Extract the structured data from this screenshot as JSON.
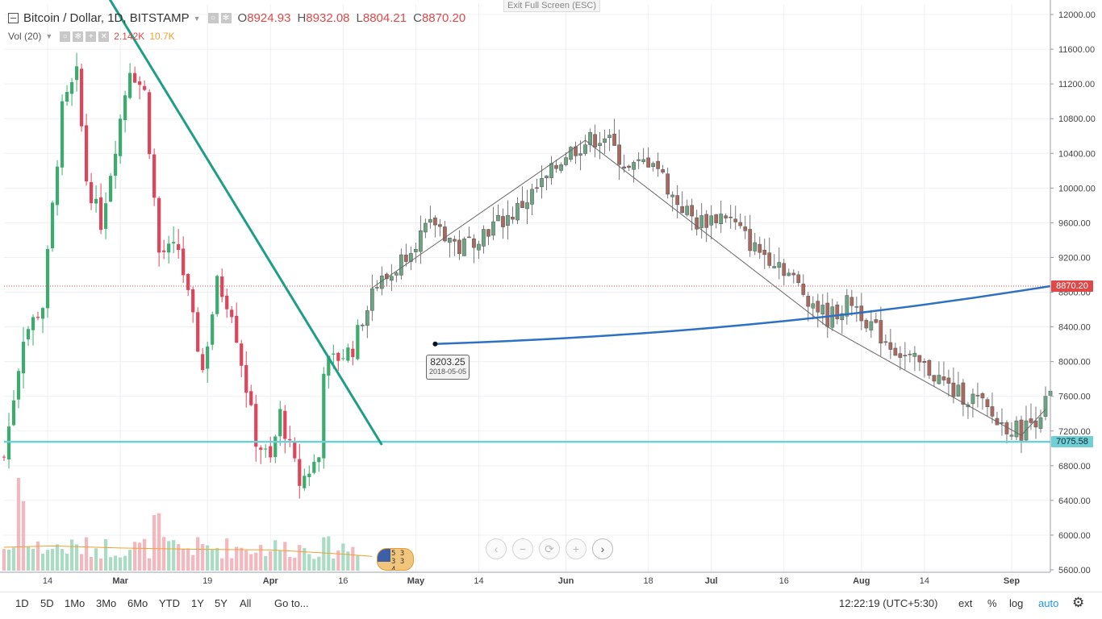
{
  "legend": {
    "symbol": "Bitcoin / Dollar, 1D, BITSTAMP",
    "open_label": "O",
    "open": "8924.93",
    "high_label": "H",
    "high": "8932.08",
    "low_label": "L",
    "low": "8804.21",
    "close_label": "C",
    "close": "8870.20",
    "volume_label": "Vol (20)",
    "volume": "2.142K",
    "volume_ma": "10.7K"
  },
  "exit_fullscreen": "Exit Full Screen (ESC)",
  "price_tags": {
    "last": "8870.20",
    "level": "7075.58"
  },
  "drag_label": {
    "value": "8203.25",
    "date": "2018-05-05"
  },
  "flag_badge_text": "5 3 3 3 4",
  "toolbar": {
    "ranges": [
      "1D",
      "5D",
      "1Mo",
      "3Mo",
      "6Mo",
      "YTD",
      "1Y",
      "5Y",
      "All"
    ],
    "goto": "Go to...",
    "time": "12:22:19 (UTC+5:30)",
    "ext": "ext",
    "percent": "%",
    "log": "log",
    "auto": "auto"
  },
  "nav_icons": [
    "chevron-left-icon",
    "zoom-out-icon",
    "reset-icon",
    "zoom-in-icon",
    "chevron-right-icon"
  ],
  "colors": {
    "up": "#6ba583",
    "down": "#d75442",
    "trendline": "#1e9e84",
    "curve": "#2e70c4",
    "support": "#6fd0d6",
    "last_price": "#e04848"
  },
  "chart_data": {
    "type": "candlestick",
    "y_ticks": [
      5600,
      6000,
      6400,
      6800,
      7200,
      7600,
      8000,
      8400,
      8800,
      9200,
      9600,
      10000,
      10400,
      10800,
      11200,
      11600,
      12000
    ],
    "y_tick_labels": [
      "5600.00",
      "6000.00",
      "6400.00",
      "6800.00",
      "7200.00",
      "7600.00",
      "8000.00",
      "8400.00",
      "8800.00",
      "9200.00",
      "9600.00",
      "10000.00",
      "10400.00",
      "10800.00",
      "11200.00",
      "11600.00",
      "12000.00"
    ],
    "x_start": "2018-02-05",
    "x_end": "2018-09-09",
    "x_ticks": [
      {
        "date": "2018-02-14",
        "label": "14"
      },
      {
        "date": "2018-03-01",
        "label": "Mar"
      },
      {
        "date": "2018-03-19",
        "label": "19"
      },
      {
        "date": "2018-04-01",
        "label": "Apr"
      },
      {
        "date": "2018-04-16",
        "label": "16"
      },
      {
        "date": "2018-05-01",
        "label": "May"
      },
      {
        "date": "2018-05-14",
        "label": "14"
      },
      {
        "date": "2018-06-01",
        "label": "Jun"
      },
      {
        "date": "2018-06-18",
        "label": "18"
      },
      {
        "date": "2018-07-01",
        "label": "Jul"
      },
      {
        "date": "2018-07-16",
        "label": "16"
      },
      {
        "date": "2018-08-01",
        "label": "Aug"
      },
      {
        "date": "2018-08-14",
        "label": "14"
      },
      {
        "date": "2018-09-01",
        "label": "Sep"
      }
    ],
    "last_price": 8870.2,
    "horizontal_level": 7075.58,
    "trendlines": [
      {
        "from": [
          "2018-02-26",
          12250
        ],
        "to": [
          "2018-04-24",
          7040
        ]
      }
    ],
    "curve": {
      "points": [
        [
          "2018-05-05",
          8203.25
        ],
        [
          "2018-06-20",
          8290
        ],
        [
          "2018-07-30",
          8500
        ],
        [
          "2018-09-09",
          8870
        ]
      ]
    },
    "close_path": [
      [
        "2018-04-22",
        8850
      ],
      [
        "2018-06-05",
        10550
      ],
      [
        "2018-07-25",
        8400
      ],
      [
        "2018-09-03",
        7150
      ],
      [
        "2018-09-08",
        7450
      ]
    ],
    "candle_path": [
      [
        "2018-02-05",
        6900
      ],
      [
        "2018-02-09",
        8300
      ],
      [
        "2018-02-13",
        8650
      ],
      [
        "2018-02-17",
        10900
      ],
      [
        "2018-02-20",
        11300
      ],
      [
        "2018-02-22",
        10100
      ],
      [
        "2018-02-25",
        9600
      ],
      [
        "2018-02-28",
        10500
      ],
      [
        "2018-03-03",
        11400
      ],
      [
        "2018-03-06",
        11100
      ],
      [
        "2018-03-09",
        9250
      ],
      [
        "2018-03-13",
        9300
      ],
      [
        "2018-03-18",
        7900
      ],
      [
        "2018-03-21",
        8900
      ],
      [
        "2018-03-24",
        8600
      ],
      [
        "2018-03-29",
        7100
      ],
      [
        "2018-04-01",
        6850
      ],
      [
        "2018-04-03",
        7400
      ],
      [
        "2018-04-07",
        6600
      ],
      [
        "2018-04-11",
        6900
      ],
      [
        "2018-04-12",
        7950
      ],
      [
        "2018-04-18",
        8150
      ],
      [
        "2018-04-22",
        8850
      ],
      [
        "2018-04-26",
        9000
      ],
      [
        "2018-04-30",
        9350
      ],
      [
        "2018-05-05",
        9600
      ],
      [
        "2018-05-10",
        9300
      ],
      [
        "2018-05-15",
        9500
      ],
      [
        "2018-05-21",
        9700
      ],
      [
        "2018-05-28",
        10100
      ],
      [
        "2018-06-01",
        10400
      ],
      [
        "2018-06-06",
        10550
      ],
      [
        "2018-06-09",
        10600
      ],
      [
        "2018-06-14",
        10200
      ],
      [
        "2018-06-19",
        10350
      ],
      [
        "2018-06-23",
        9900
      ],
      [
        "2018-06-28",
        9600
      ],
      [
        "2018-07-04",
        9700
      ],
      [
        "2018-07-10",
        9300
      ],
      [
        "2018-07-15",
        9150
      ],
      [
        "2018-07-20",
        8800
      ],
      [
        "2018-07-25",
        8500
      ],
      [
        "2018-07-30",
        8700
      ],
      [
        "2018-08-04",
        8350
      ],
      [
        "2018-08-10",
        8050
      ],
      [
        "2018-08-15",
        7900
      ],
      [
        "2018-08-20",
        7650
      ],
      [
        "2018-08-25",
        7550
      ],
      [
        "2018-08-29",
        7300
      ],
      [
        "2018-09-03",
        7200
      ],
      [
        "2018-09-06",
        7350
      ],
      [
        "2018-09-09",
        7600
      ]
    ],
    "volume": {
      "ma_path": [
        [
          "2018-02-05",
          0.36
        ],
        [
          "2018-02-15",
          0.38
        ],
        [
          "2018-03-01",
          0.35
        ],
        [
          "2018-03-15",
          0.33
        ],
        [
          "2018-04-01",
          0.32
        ],
        [
          "2018-04-15",
          0.26
        ],
        [
          "2018-04-22",
          0.22
        ]
      ],
      "spikes": [
        [
          "2018-02-08",
          1.0
        ],
        [
          "2018-02-09",
          0.75
        ],
        [
          "2018-03-08",
          0.6
        ],
        [
          "2018-03-09",
          0.62
        ]
      ]
    }
  }
}
